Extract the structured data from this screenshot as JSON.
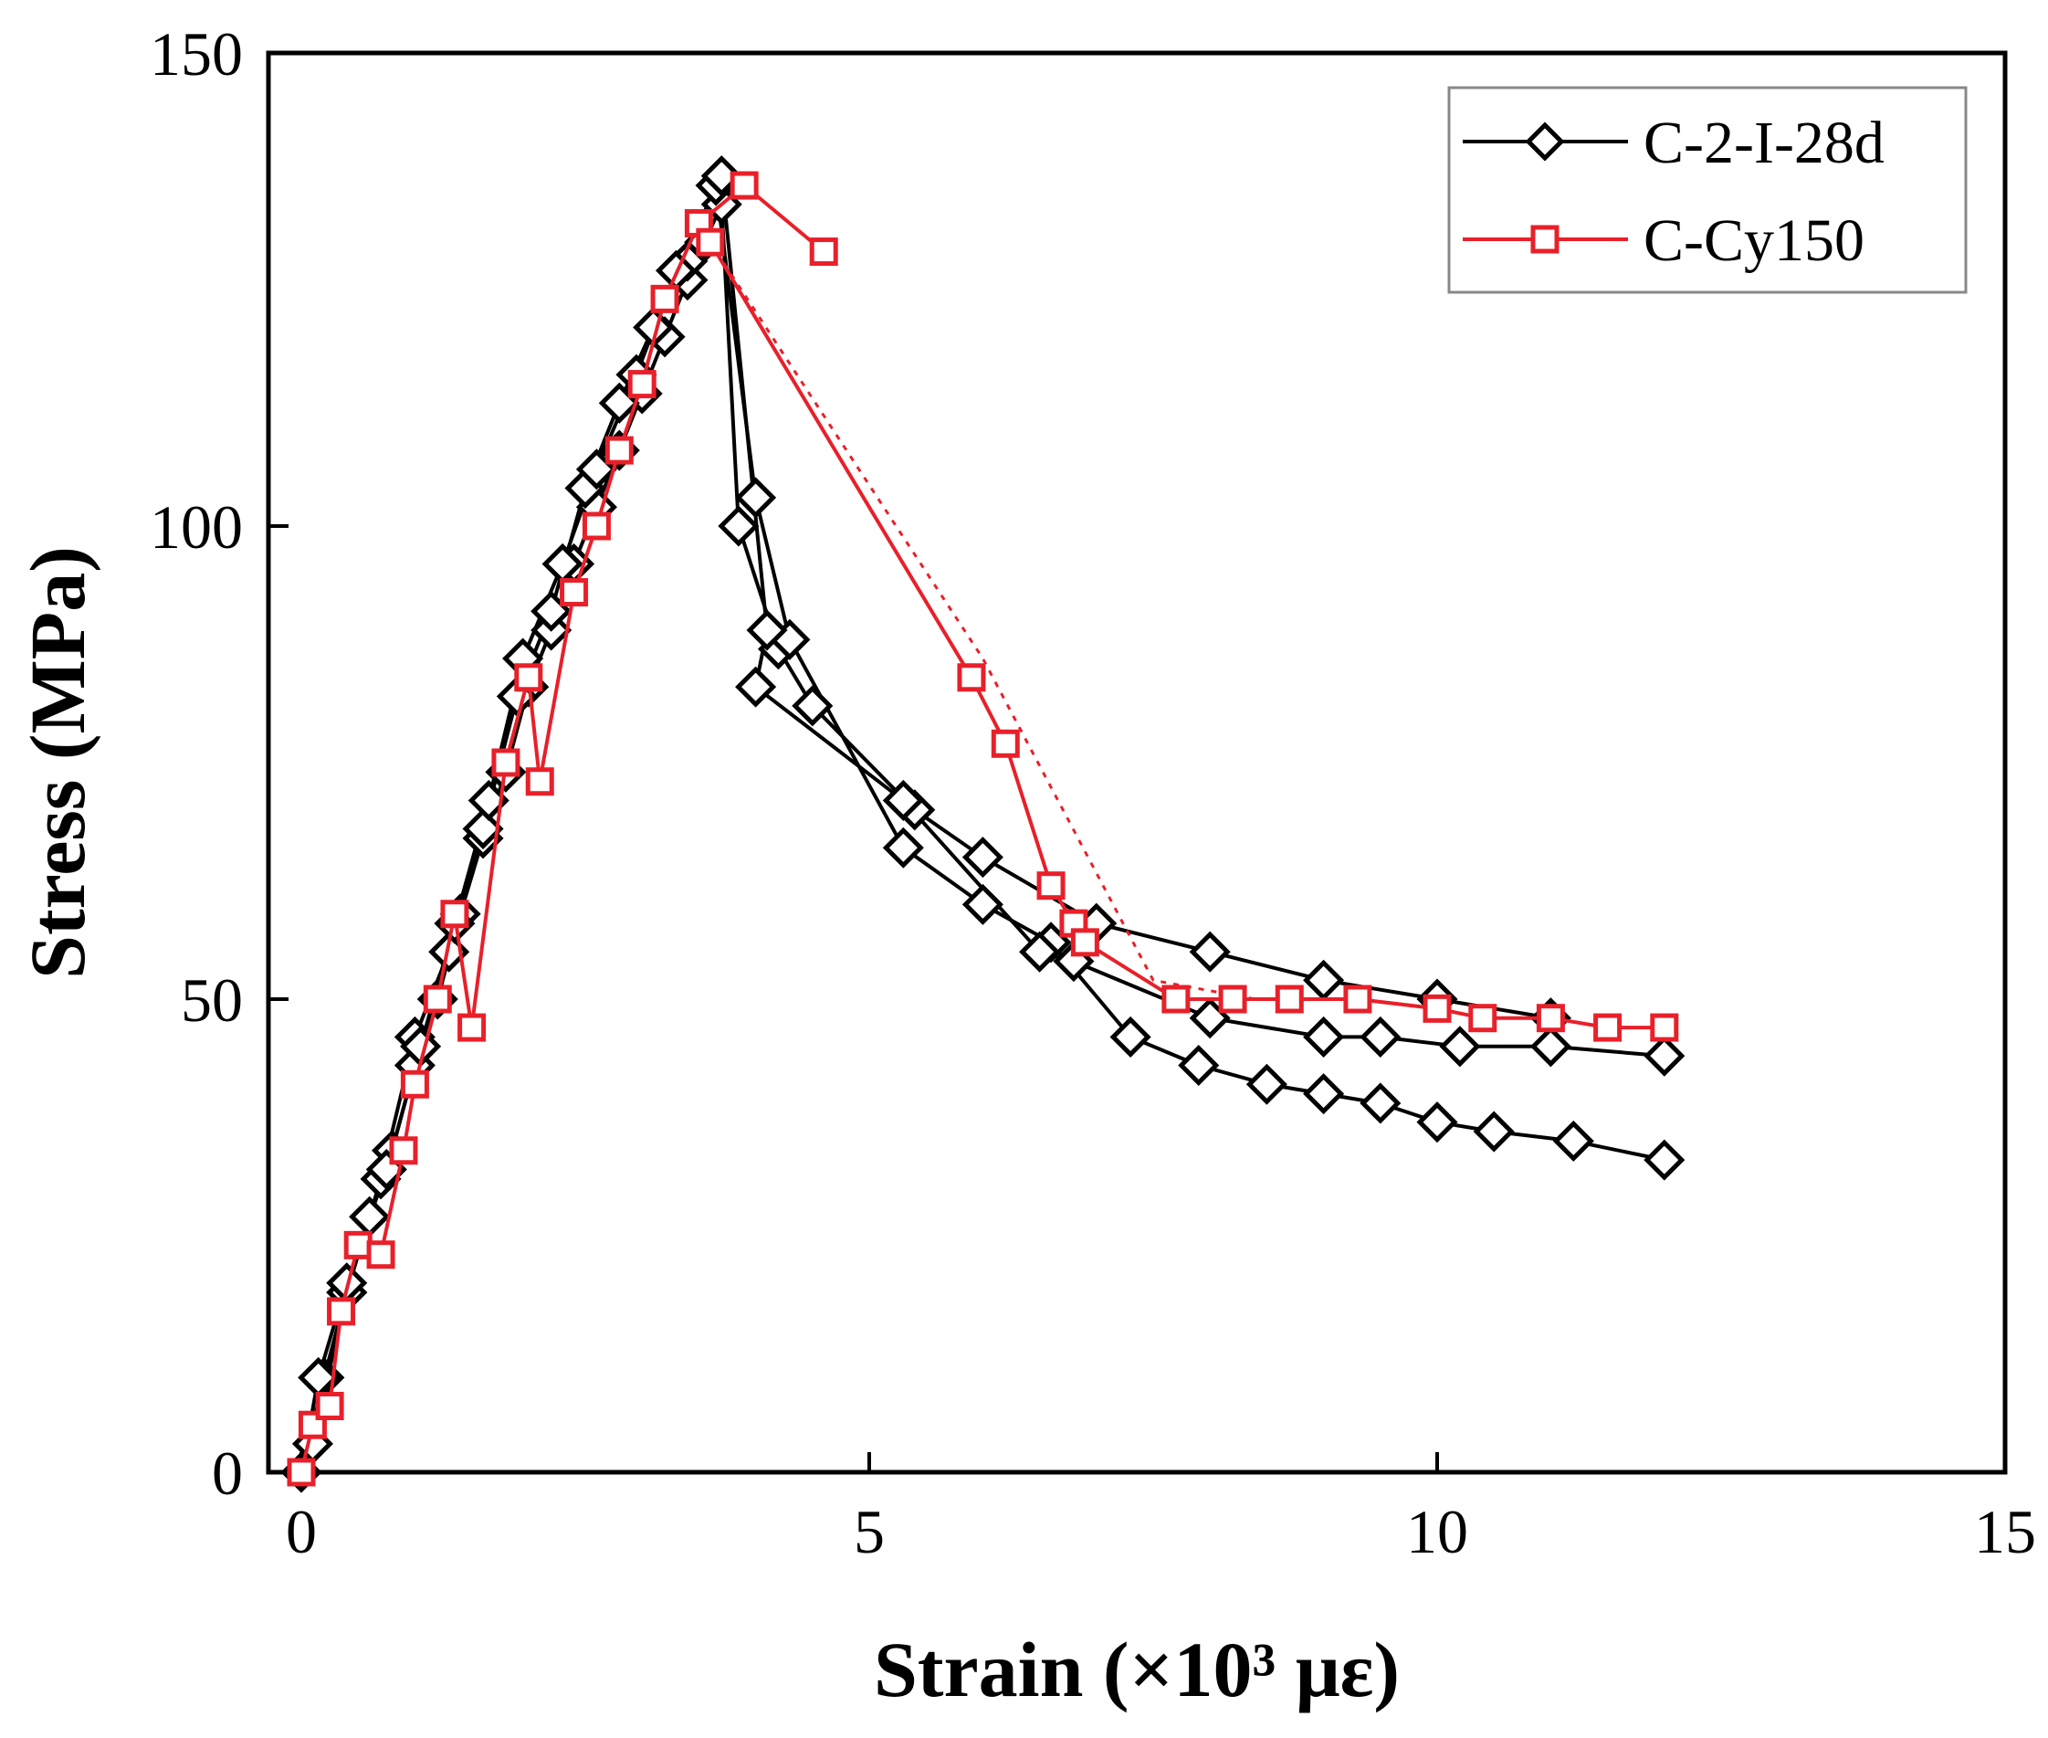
{
  "chart_data": {
    "type": "line",
    "xlabel": "Strain (×10³ με)",
    "ylabel": "Stress (MPa)",
    "xlim": [
      0,
      15
    ],
    "ylim": [
      0,
      150
    ],
    "x_ticks": [
      0,
      5,
      10,
      15
    ],
    "x_tick_labels": [
      "0",
      "5",
      "10",
      "15"
    ],
    "y_ticks": [
      0,
      50,
      100,
      150
    ],
    "y_tick_labels": [
      "0",
      "50",
      "100",
      "150"
    ],
    "grid": false,
    "legend_position": "top-right",
    "series": [
      {
        "name": "C-2-I-28d",
        "legend_label": "C-2-I-28d",
        "color": "#000000",
        "marker": "diamond",
        "curves": [
          [
            [
              0.0,
              0
            ],
            [
              0.2,
              10
            ],
            [
              0.4,
              19
            ],
            [
              0.6,
              27
            ],
            [
              0.8,
              34
            ],
            [
              1.0,
              43
            ],
            [
              1.2,
              50
            ],
            [
              1.4,
              59
            ],
            [
              1.6,
              67
            ],
            [
              1.8,
              74
            ],
            [
              2.0,
              83
            ],
            [
              2.2,
              89
            ],
            [
              2.4,
              96
            ],
            [
              2.6,
              102
            ],
            [
              2.8,
              108
            ],
            [
              3.0,
              114
            ],
            [
              3.2,
              120
            ],
            [
              3.4,
              126
            ],
            [
              3.55,
              130
            ],
            [
              3.7,
              134
            ],
            [
              3.85,
              100
            ],
            [
              4.2,
              87
            ],
            [
              4.5,
              81
            ],
            [
              5.4,
              70
            ],
            [
              6.0,
              65
            ],
            [
              7.0,
              58
            ],
            [
              8.0,
              55
            ],
            [
              9.0,
              52
            ],
            [
              10.0,
              50
            ],
            [
              11.0,
              48
            ]
          ],
          [
            [
              0.0,
              0
            ],
            [
              0.1,
              3
            ],
            [
              0.4,
              19
            ],
            [
              0.7,
              31
            ],
            [
              1.0,
              46
            ],
            [
              1.3,
              55
            ],
            [
              1.6,
              68
            ],
            [
              1.9,
              82
            ],
            [
              2.2,
              91
            ],
            [
              2.5,
              104
            ],
            [
              2.8,
              113
            ],
            [
              3.1,
              121
            ],
            [
              3.4,
              128
            ],
            [
              3.65,
              136
            ],
            [
              4.0,
              103
            ],
            [
              4.3,
              88
            ],
            [
              5.3,
              66
            ],
            [
              6.0,
              60
            ],
            [
              6.6,
              56
            ],
            [
              7.3,
              46
            ],
            [
              7.9,
              43
            ],
            [
              8.5,
              41
            ],
            [
              9.0,
              40
            ],
            [
              9.5,
              39
            ],
            [
              10.0,
              37
            ],
            [
              10.5,
              36
            ],
            [
              11.2,
              35
            ],
            [
              12.0,
              33
            ]
          ],
          [
            [
              0.0,
              0
            ],
            [
              0.15,
              10
            ],
            [
              0.4,
              20
            ],
            [
              0.75,
              32
            ],
            [
              1.05,
              45
            ],
            [
              1.35,
              58
            ],
            [
              1.65,
              71
            ],
            [
              1.95,
              86
            ],
            [
              2.3,
              96
            ],
            [
              2.6,
              106
            ],
            [
              2.95,
              116
            ],
            [
              3.3,
              127
            ],
            [
              3.7,
              137
            ],
            [
              4.1,
              89
            ],
            [
              4.0,
              83
            ],
            [
              5.3,
              71
            ],
            [
              6.5,
              55
            ],
            [
              6.8,
              54
            ],
            [
              8.0,
              48
            ],
            [
              9.0,
              46
            ],
            [
              9.5,
              46
            ],
            [
              10.2,
              45
            ],
            [
              11.0,
              45
            ],
            [
              12.0,
              44
            ]
          ]
        ]
      },
      {
        "name": "C-Cy150",
        "legend_label": "C-Cy150",
        "color": "#e8202a",
        "marker": "square",
        "curves": [
          [
            [
              0.0,
              0
            ],
            [
              0.1,
              5
            ],
            [
              0.25,
              7
            ],
            [
              0.35,
              17
            ],
            [
              0.5,
              24
            ],
            [
              0.7,
              23
            ],
            [
              0.9,
              34
            ],
            [
              1.0,
              41
            ],
            [
              1.2,
              50
            ],
            [
              1.35,
              59
            ],
            [
              1.5,
              47
            ],
            [
              1.8,
              75
            ],
            [
              2.0,
              84
            ],
            [
              2.1,
              73
            ],
            [
              2.4,
              93
            ],
            [
              2.6,
              100
            ],
            [
              2.8,
              108
            ],
            [
              3.0,
              115
            ],
            [
              3.2,
              124
            ],
            [
              3.5,
              132
            ],
            [
              3.9,
              136
            ],
            [
              4.6,
              129
            ]
          ],
          [
            [
              3.6,
              130
            ],
            [
              5.9,
              84
            ],
            [
              6.2,
              77
            ],
            [
              6.6,
              62
            ],
            [
              6.8,
              58
            ],
            [
              6.9,
              56
            ],
            [
              7.7,
              50
            ],
            [
              8.2,
              50
            ],
            [
              8.7,
              50
            ],
            [
              9.3,
              50
            ],
            [
              10.0,
              49
            ],
            [
              10.4,
              48
            ],
            [
              11.0,
              48
            ],
            [
              11.5,
              47
            ],
            [
              12.0,
              47
            ]
          ]
        ],
        "dotted_curve": [
          [
            3.6,
            130
          ],
          [
            6.0,
            86
          ],
          [
            7.5,
            52
          ],
          [
            8.4,
            50
          ]
        ]
      }
    ]
  }
}
